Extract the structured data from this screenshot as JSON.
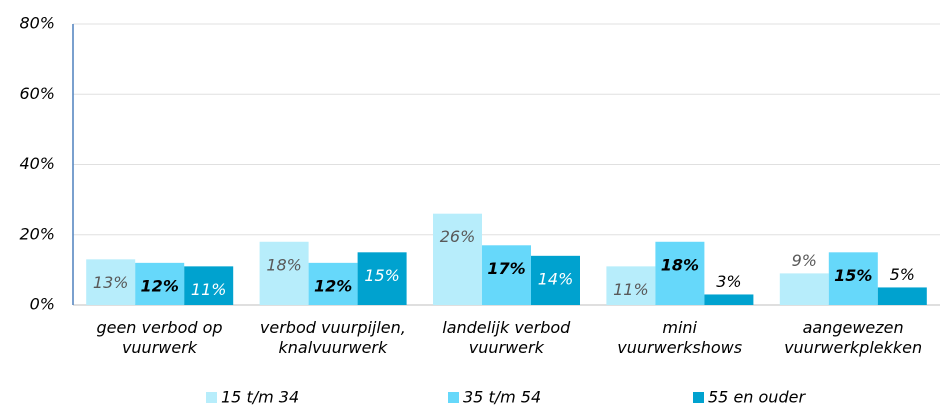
{
  "chart_data": {
    "type": "bar",
    "categories": [
      "geen verbod op\nvuurwerk",
      "verbod vuurpijlen,\nknalvuurwerk",
      "landelijk verbod\nvuurwerk",
      "mini\nvuurwerkshows",
      "aangewezen\nvuurwerkplekken"
    ],
    "series": [
      {
        "name": "15 t/m 34",
        "color": "#b7edfb",
        "values": [
          13,
          18,
          26,
          11,
          9
        ],
        "value_labels": [
          "13%",
          "18%",
          "26%",
          "11%",
          "9%"
        ]
      },
      {
        "name": "35 t/m 54",
        "color": "#66d8fa",
        "values": [
          12,
          12,
          17,
          18,
          15
        ],
        "value_labels": [
          "12%",
          "12%",
          "17%",
          "18%",
          "15%"
        ]
      },
      {
        "name": "55 en ouder",
        "color": "#00a2cf",
        "values": [
          11,
          15,
          14,
          3,
          5
        ],
        "value_labels": [
          "11%",
          "15%",
          "14%",
          "3%",
          "5%"
        ]
      }
    ],
    "ylim": [
      0,
      80
    ],
    "yticks": [
      {
        "value": 0,
        "label": "0%"
      },
      {
        "value": 20,
        "label": "20%"
      },
      {
        "value": 40,
        "label": "40%"
      },
      {
        "value": 60,
        "label": "60%"
      },
      {
        "value": 80,
        "label": "80%"
      }
    ],
    "grid": true,
    "legend": "bottom"
  }
}
